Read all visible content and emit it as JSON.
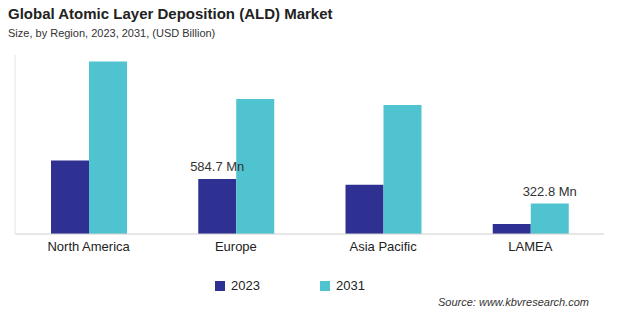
{
  "chart_data": {
    "type": "bar",
    "title": "Global Atomic Layer Deposition (ALD) Market",
    "subtitle": "Size, by Region, 2023, 2031, (USD Billion)",
    "source": "Source: www.kbvresearch.com",
    "categories": [
      "North America",
      "Europe",
      "Asia Pacific",
      "LAMEA"
    ],
    "series": [
      {
        "name": "2023",
        "color": "#2e3192",
        "values": [
          781,
          584.7,
          524,
          107
        ],
        "value_labels": [
          null,
          "584.7 Mn",
          null,
          null
        ]
      },
      {
        "name": "2031",
        "color": "#4fc3cf",
        "values": [
          1830,
          1434,
          1370,
          322.8
        ],
        "value_labels": [
          null,
          null,
          null,
          "322.8 Mn"
        ]
      }
    ],
    "ylim": [
      0,
      1900
    ],
    "tick_labels": "x",
    "grid": false,
    "legend": "bottom"
  }
}
